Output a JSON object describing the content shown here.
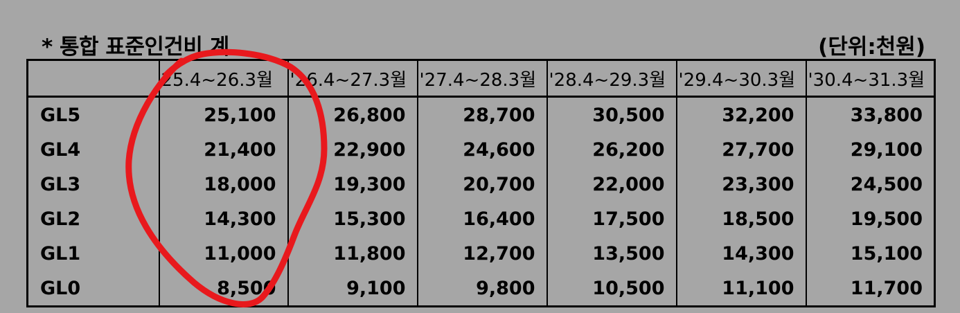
{
  "title": "* 통합 표준인건비 계",
  "unit": "(단위:천원)",
  "table": {
    "headers": [
      "",
      "25.4~26.3월",
      "'26.4~27.3월",
      "'27.4~28.3월",
      "'28.4~29.3월",
      "'29.4~30.3월",
      "'30.4~31.3월"
    ],
    "rows": [
      {
        "grade": "GL5",
        "values": [
          "25,100",
          "26,800",
          "28,700",
          "30,500",
          "32,200",
          "33,800"
        ]
      },
      {
        "grade": "GL4",
        "values": [
          "21,400",
          "22,900",
          "24,600",
          "26,200",
          "27,700",
          "29,100"
        ]
      },
      {
        "grade": "GL3",
        "values": [
          "18,000",
          "19,300",
          "20,700",
          "22,000",
          "23,300",
          "24,500"
        ]
      },
      {
        "grade": "GL2",
        "values": [
          "14,300",
          "15,300",
          "16,400",
          "17,500",
          "18,500",
          "19,500"
        ]
      },
      {
        "grade": "GL1",
        "values": [
          "11,000",
          "11,800",
          "12,700",
          "13,500",
          "14,300",
          "15,100"
        ]
      },
      {
        "grade": "GL0",
        "values": [
          "8,500",
          "9,100",
          "9,800",
          "10,500",
          "11,100",
          "11,700"
        ]
      }
    ]
  },
  "annotation_color": "#e8191d"
}
